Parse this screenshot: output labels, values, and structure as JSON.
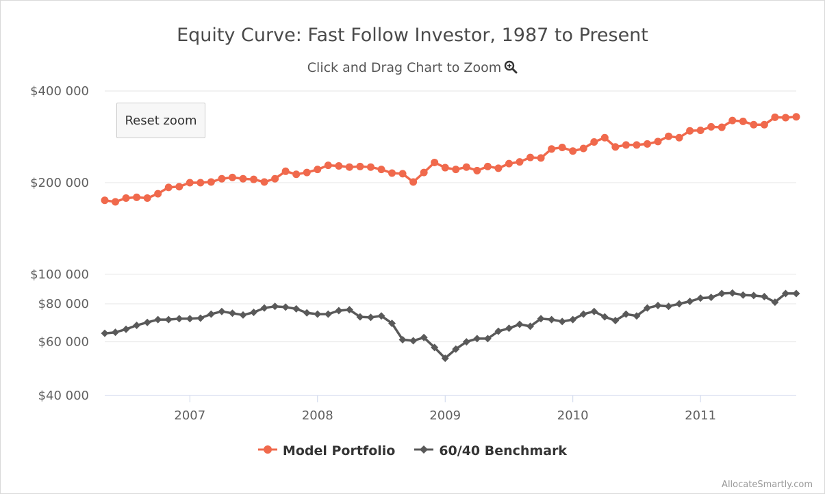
{
  "chart_data": {
    "type": "line",
    "title": "Equity Curve: Fast Follow Investor, 1987 to Present",
    "subtitle": "Click and Drag Chart to Zoom",
    "yscale": "log",
    "ylim": [
      40000,
      400000
    ],
    "yticks": [
      40000,
      60000,
      80000,
      100000,
      200000,
      400000
    ],
    "ytick_labels": [
      "$40 000",
      "$60 000",
      "$80 000",
      "$100 000",
      "$200 000",
      "$400 000"
    ],
    "xlim": [
      "2006-05",
      "2011-10"
    ],
    "xtick_labels": [
      "2007",
      "2008",
      "2009",
      "2010",
      "2011"
    ],
    "grid": true,
    "legend_position": "bottom-center",
    "x": [
      "2006-05",
      "2006-06",
      "2006-07",
      "2006-08",
      "2006-09",
      "2006-10",
      "2006-11",
      "2006-12",
      "2007-01",
      "2007-02",
      "2007-03",
      "2007-04",
      "2007-05",
      "2007-06",
      "2007-07",
      "2007-08",
      "2007-09",
      "2007-10",
      "2007-11",
      "2007-12",
      "2008-01",
      "2008-02",
      "2008-03",
      "2008-04",
      "2008-05",
      "2008-06",
      "2008-07",
      "2008-08",
      "2008-09",
      "2008-10",
      "2008-11",
      "2008-12",
      "2009-01",
      "2009-02",
      "2009-03",
      "2009-04",
      "2009-05",
      "2009-06",
      "2009-07",
      "2009-08",
      "2009-09",
      "2009-10",
      "2009-11",
      "2009-12",
      "2010-01",
      "2010-02",
      "2010-03",
      "2010-04",
      "2010-05",
      "2010-06",
      "2010-07",
      "2010-08",
      "2010-09",
      "2010-10",
      "2010-11",
      "2010-12",
      "2011-01",
      "2011-02",
      "2011-03",
      "2011-04",
      "2011-05",
      "2011-06",
      "2011-07",
      "2011-08",
      "2011-09",
      "2011-10"
    ],
    "series": [
      {
        "name": "Model Portfolio",
        "color": "#f0694c",
        "marker": "circle",
        "values": [
          175000,
          173000,
          178000,
          179000,
          178000,
          184000,
          193000,
          194000,
          200000,
          200000,
          201000,
          206000,
          208000,
          206000,
          205000,
          201000,
          206000,
          218000,
          213000,
          216000,
          221000,
          228000,
          227000,
          225000,
          226000,
          225000,
          221000,
          215000,
          214000,
          201000,
          216000,
          233000,
          224000,
          221000,
          225000,
          219000,
          226000,
          223000,
          231000,
          234000,
          242000,
          241000,
          258000,
          261000,
          254000,
          259000,
          272000,
          281000,
          262000,
          266000,
          266000,
          268000,
          273000,
          284000,
          281000,
          296000,
          297000,
          305000,
          304000,
          320000,
          318000,
          310000,
          310000,
          328000,
          327000,
          329000
        ]
      },
      {
        "name": "60/40 Benchmark",
        "color": "#595959",
        "marker": "diamond",
        "values": [
          64000,
          64500,
          66000,
          68000,
          69500,
          71000,
          71000,
          71500,
          71500,
          71800,
          74000,
          75500,
          74500,
          73500,
          75000,
          77500,
          78500,
          78000,
          77000,
          74700,
          74000,
          74000,
          76000,
          76500,
          72500,
          72200,
          73000,
          69000,
          61000,
          60500,
          62000,
          57500,
          53000,
          56800,
          60000,
          61500,
          61500,
          65000,
          66500,
          68500,
          67500,
          71500,
          71000,
          70000,
          71000,
          74000,
          75500,
          72500,
          70500,
          74000,
          73000,
          77500,
          79000,
          78500,
          80000,
          81500,
          83500,
          84000,
          86500,
          86800,
          85500,
          85200,
          84500,
          81000,
          86500,
          86500
        ]
      }
    ]
  },
  "ui": {
    "reset_zoom_label": "Reset zoom",
    "credit": "AllocateSmartly.com",
    "zoom_icon": "magnifier-plus-icon"
  }
}
